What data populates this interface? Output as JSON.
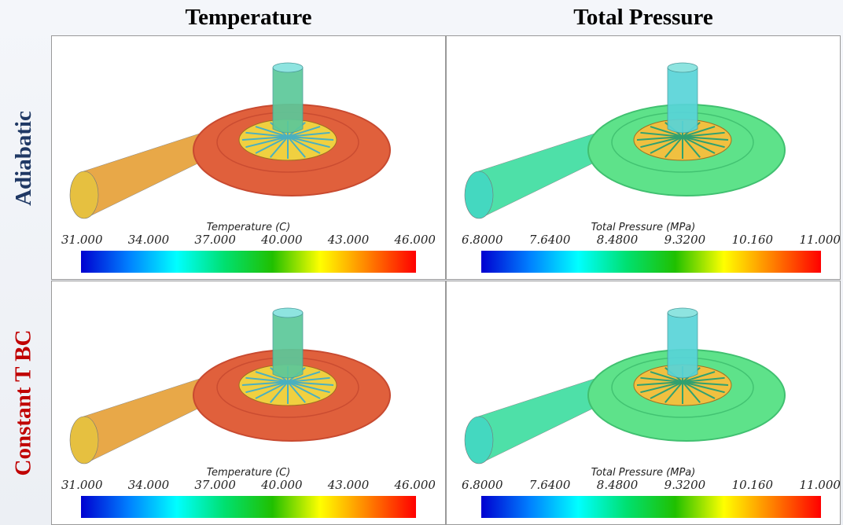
{
  "column_headers": [
    "Temperature",
    "Total Pressure"
  ],
  "row_headers": [
    "Adiabatic",
    "Constant T BC"
  ],
  "panels": [
    {
      "colorbar": {
        "title": "Temperature (C)",
        "ticks": [
          "31.000",
          "34.000",
          "37.000",
          "40.000",
          "43.000",
          "46.000"
        ]
      }
    },
    {
      "colorbar": {
        "title": "Total Pressure (MPa)",
        "ticks": [
          "6.8000",
          "7.6400",
          "8.4800",
          "9.3200",
          "10.160",
          "11.000"
        ]
      }
    },
    {
      "colorbar": {
        "title": "Temperature (C)",
        "ticks": [
          "31.000",
          "34.000",
          "37.000",
          "40.000",
          "43.000",
          "46.000"
        ]
      }
    },
    {
      "colorbar": {
        "title": "Total Pressure (MPa)",
        "ticks": [
          "6.8000",
          "7.6400",
          "8.4800",
          "9.3200",
          "10.160",
          "11.000"
        ]
      }
    }
  ]
}
